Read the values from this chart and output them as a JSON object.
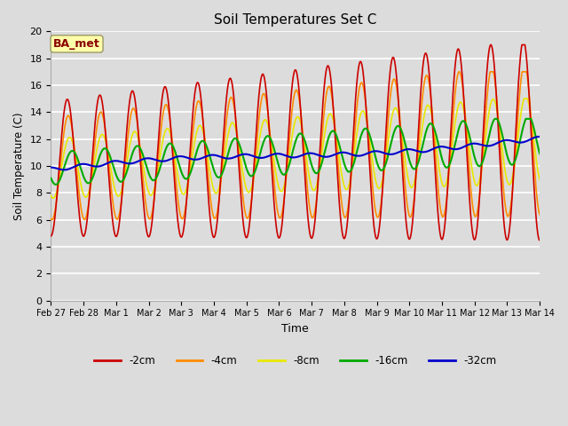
{
  "title": "Soil Temperatures Set C",
  "xlabel": "Time",
  "ylabel": "Soil Temperature (C)",
  "annotation": "BA_met",
  "ylim": [
    0,
    20
  ],
  "background_color": "#dcdcdc",
  "grid_color": "#ffffff",
  "series": {
    "-2cm": {
      "color": "#cc0000",
      "lw": 1.2
    },
    "-4cm": {
      "color": "#ff8c00",
      "lw": 1.2
    },
    "-8cm": {
      "color": "#e8e800",
      "lw": 1.2
    },
    "-16cm": {
      "color": "#00aa00",
      "lw": 1.5
    },
    "-32cm": {
      "color": "#0000cc",
      "lw": 1.5
    }
  },
  "xtick_labels": [
    "Feb 27",
    "Feb 28",
    "Mar 1",
    "Mar 2",
    "Mar 3",
    "Mar 4",
    "Mar 5",
    "Mar 6",
    "Mar 7",
    "Mar 8",
    "Mar 9",
    "Mar 10",
    "Mar 11",
    "Mar 12",
    "Mar 13",
    "Mar 14"
  ],
  "ytick_vals": [
    0,
    2,
    4,
    6,
    8,
    10,
    12,
    14,
    16,
    18,
    20
  ]
}
